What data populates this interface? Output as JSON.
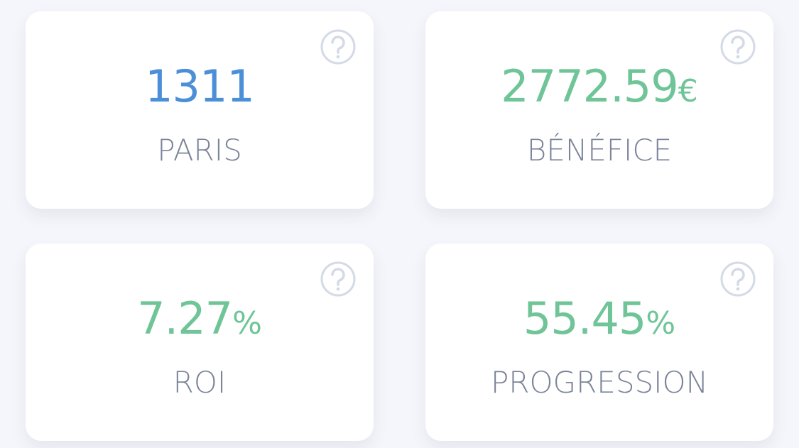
{
  "cards": [
    {
      "value": "1311",
      "label": "PARIS",
      "color": "#4b8fd9"
    },
    {
      "value": "2772.59",
      "unit": "€",
      "label": "BÉNÉFICE",
      "color": "#6fc597"
    },
    {
      "value": "7.27",
      "unit": "%",
      "label": "ROI",
      "color": "#6fc597"
    },
    {
      "value": "55.45",
      "unit": "%",
      "label": "PROGRESSION",
      "color": "#6fc597"
    }
  ]
}
